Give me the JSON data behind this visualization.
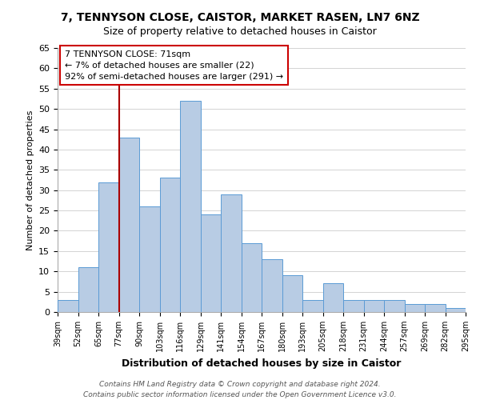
{
  "title": "7, TENNYSON CLOSE, CAISTOR, MARKET RASEN, LN7 6NZ",
  "subtitle": "Size of property relative to detached houses in Caistor",
  "xlabel": "Distribution of detached houses by size in Caistor",
  "ylabel": "Number of detached properties",
  "categories": [
    "39sqm",
    "52sqm",
    "65sqm",
    "77sqm",
    "90sqm",
    "103sqm",
    "116sqm",
    "129sqm",
    "141sqm",
    "154sqm",
    "167sqm",
    "180sqm",
    "193sqm",
    "205sqm",
    "218sqm",
    "231sqm",
    "244sqm",
    "257sqm",
    "269sqm",
    "282sqm",
    "295sqm"
  ],
  "values": [
    3,
    11,
    32,
    43,
    26,
    33,
    52,
    24,
    29,
    17,
    13,
    9,
    3,
    7,
    3,
    3,
    3,
    2,
    2,
    1
  ],
  "bar_color": "#b8cce4",
  "bar_edge_color": "#5b9bd5",
  "ylim": [
    0,
    65
  ],
  "yticks": [
    0,
    5,
    10,
    15,
    20,
    25,
    30,
    35,
    40,
    45,
    50,
    55,
    60,
    65
  ],
  "annotation_text_line1": "7 TENNYSON CLOSE: 71sqm",
  "annotation_text_line2": "← 7% of detached houses are smaller (22)",
  "annotation_text_line3": "92% of semi-detached houses are larger (291) →",
  "vline_x_index": 3,
  "vline_color": "#aa0000",
  "footer1": "Contains HM Land Registry data © Crown copyright and database right 2024.",
  "footer2": "Contains public sector information licensed under the Open Government Licence v3.0."
}
